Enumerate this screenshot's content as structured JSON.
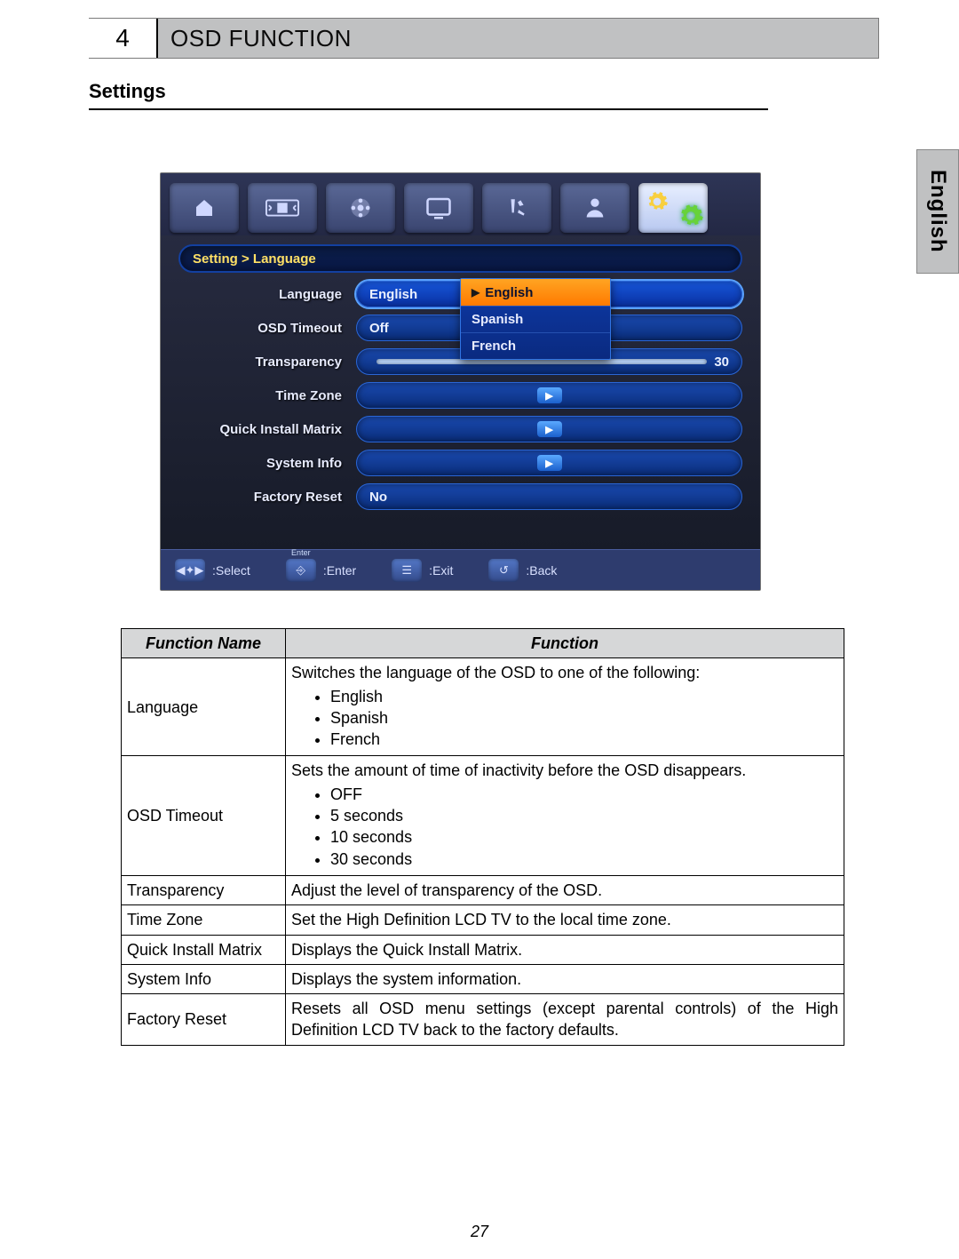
{
  "header": {
    "number": "4",
    "title": "OSD FUNCTION"
  },
  "subheader": "Settings",
  "side_tab": "English",
  "page_number": "27",
  "osd": {
    "breadcrumb": "Setting > Language",
    "rows": {
      "language": {
        "label": "Language",
        "value": "English"
      },
      "timeout": {
        "label": "OSD Timeout",
        "value": "Off"
      },
      "transp": {
        "label": "Transparency",
        "value_right": "30"
      },
      "timezone": {
        "label": "Time Zone"
      },
      "qim": {
        "label": "Quick Install Matrix"
      },
      "sysinfo": {
        "label": "System Info"
      },
      "factory": {
        "label": "Factory Reset",
        "value": "No"
      }
    },
    "dropdown": {
      "opt0": "English",
      "opt1": "Spanish",
      "opt2": "French"
    },
    "footer": {
      "select": "Select",
      "enter": "Enter",
      "enter_tag": "Enter",
      "exit": "Exit",
      "back": "Back"
    },
    "colors": {
      "bg_top": "#2e3556",
      "bg_bottom": "#151925",
      "pill": "#1a4ab0",
      "pill_sel": "#1756da",
      "dropdown_hl": "#ff7a00",
      "breadcrumb_text": "#ffe065",
      "gear_green": "#67d23a",
      "gear_yellow": "#f8cf3e"
    }
  },
  "table": {
    "header_name": "Function Name",
    "header_func": "Function",
    "rows": [
      {
        "name": "Language",
        "func_intro": "Switches the language of the OSD to one of the following:",
        "bullets": [
          "English",
          "Spanish",
          "French"
        ]
      },
      {
        "name": "OSD Timeout",
        "func_intro": "Sets the amount of time of inactivity before the OSD disappears.",
        "bullets": [
          "OFF",
          "5 seconds",
          "10 seconds",
          "30 seconds"
        ]
      },
      {
        "name": "Transparency",
        "func": "Adjust the level of transparency of the OSD."
      },
      {
        "name": "Time Zone",
        "func": "Set the High Definition LCD TV to the local time zone."
      },
      {
        "name": "Quick Install Matrix",
        "func": "Displays the Quick Install Matrix."
      },
      {
        "name": "System Info",
        "func": "Displays the system information."
      },
      {
        "name": "Factory Reset",
        "func": "Resets all OSD menu settings (except parental controls) of the High Definition LCD TV back to the factory defaults.",
        "justify": true
      }
    ]
  }
}
